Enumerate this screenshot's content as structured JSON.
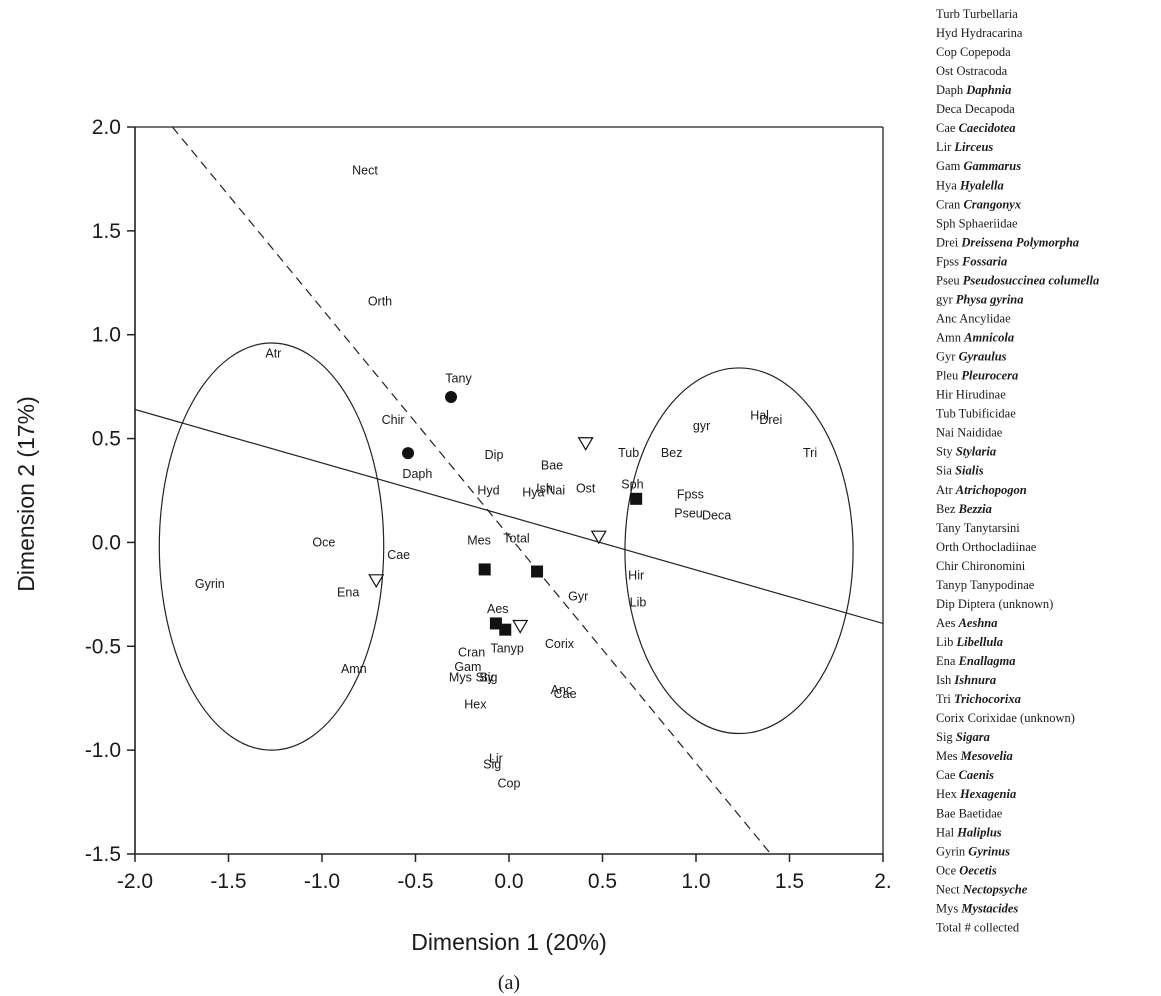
{
  "chart_data": {
    "type": "scatter",
    "caption": "(a)",
    "xlabel": "Dimension 1 (20%)",
    "ylabel": "Dimension 2 (17%)",
    "xlim": [
      -2.0,
      2.0
    ],
    "ylim": [
      -1.5,
      2.0
    ],
    "x_ticks": [
      {
        "value": -2.0,
        "label": "-2.0"
      },
      {
        "value": -1.5,
        "label": "-1.5"
      },
      {
        "value": -1.0,
        "label": "-1.0"
      },
      {
        "value": -0.5,
        "label": "-0.5"
      },
      {
        "value": 0.0,
        "label": "0.0"
      },
      {
        "value": 0.5,
        "label": "0.5"
      },
      {
        "value": 1.0,
        "label": "1.0"
      },
      {
        "value": 1.5,
        "label": "1.5"
      },
      {
        "value": 2.0,
        "label": "2."
      }
    ],
    "y_ticks": [
      {
        "value": 2.0,
        "label": "2.0"
      },
      {
        "value": 1.5,
        "label": "1.5"
      },
      {
        "value": 1.0,
        "label": "1.0"
      },
      {
        "value": 0.5,
        "label": "0.5"
      },
      {
        "value": 0.0,
        "label": "0.0"
      },
      {
        "value": -0.5,
        "label": "-0.5"
      },
      {
        "value": -1.0,
        "label": "-1.0"
      },
      {
        "value": -1.5,
        "label": "-1.5"
      }
    ],
    "grid": false,
    "species_labels": [
      {
        "text": "Nect",
        "x": -0.77,
        "y": 1.79
      },
      {
        "text": "Orth",
        "x": -0.69,
        "y": 1.16
      },
      {
        "text": "Atr",
        "x": -1.26,
        "y": 0.91
      },
      {
        "text": "Tany",
        "x": -0.27,
        "y": 0.79
      },
      {
        "text": "Chir",
        "x": -0.62,
        "y": 0.59
      },
      {
        "text": "Daph",
        "x": -0.49,
        "y": 0.33
      },
      {
        "text": "Dip",
        "x": -0.08,
        "y": 0.42
      },
      {
        "text": "Hyd",
        "x": -0.11,
        "y": 0.25
      },
      {
        "text": "Bae",
        "x": 0.23,
        "y": 0.37
      },
      {
        "text": "Ish",
        "x": 0.19,
        "y": 0.26
      },
      {
        "text": "Hya",
        "x": 0.13,
        "y": 0.24
      },
      {
        "text": "Nai",
        "x": 0.25,
        "y": 0.25
      },
      {
        "text": "Ost",
        "x": 0.41,
        "y": 0.26
      },
      {
        "text": "Tub",
        "x": 0.64,
        "y": 0.43
      },
      {
        "text": "Sph",
        "x": 0.66,
        "y": 0.28
      },
      {
        "text": "gyr",
        "x": 1.03,
        "y": 0.56
      },
      {
        "text": "Bez",
        "x": 0.87,
        "y": 0.43
      },
      {
        "text": "Hal",
        "x": 1.34,
        "y": 0.61
      },
      {
        "text": "Drei",
        "x": 1.4,
        "y": 0.59
      },
      {
        "text": "Tri",
        "x": 1.61,
        "y": 0.43
      },
      {
        "text": "Fpss",
        "x": 0.97,
        "y": 0.23
      },
      {
        "text": "Pseu",
        "x": 0.96,
        "y": 0.14
      },
      {
        "text": "Deca",
        "x": 1.11,
        "y": 0.13
      },
      {
        "text": "Oce",
        "x": -0.99,
        "y": 0.0
      },
      {
        "text": "Gyrin",
        "x": -1.6,
        "y": -0.2
      },
      {
        "text": "Ena",
        "x": -0.86,
        "y": -0.24
      },
      {
        "text": "Cae",
        "x": -0.59,
        "y": -0.06
      },
      {
        "text": "Mes",
        "x": -0.16,
        "y": 0.01
      },
      {
        "text": "Total",
        "x": 0.04,
        "y": 0.02
      },
      {
        "text": "Gyr",
        "x": 0.37,
        "y": -0.26
      },
      {
        "text": "Hir",
        "x": 0.68,
        "y": -0.16
      },
      {
        "text": "Lib",
        "x": 0.69,
        "y": -0.29
      },
      {
        "text": "Aes",
        "x": -0.06,
        "y": -0.32
      },
      {
        "text": "Tanyp",
        "x": -0.01,
        "y": -0.51
      },
      {
        "text": "Corix",
        "x": 0.27,
        "y": -0.49
      },
      {
        "text": "Cran",
        "x": -0.2,
        "y": -0.53
      },
      {
        "text": "Gam",
        "x": -0.22,
        "y": -0.6
      },
      {
        "text": "Mys",
        "x": -0.26,
        "y": -0.65
      },
      {
        "text": "Sty",
        "x": -0.13,
        "y": -0.65
      },
      {
        "text": "Sig",
        "x": -0.11,
        "y": -0.65
      },
      {
        "text": "Anc",
        "x": 0.28,
        "y": -0.71
      },
      {
        "text": "Cae",
        "x": 0.3,
        "y": -0.73
      },
      {
        "text": "Hex",
        "x": -0.18,
        "y": -0.78
      },
      {
        "text": "Amn",
        "x": -0.83,
        "y": -0.61
      },
      {
        "text": "Lir",
        "x": -0.07,
        "y": -1.04
      },
      {
        "text": "Sig",
        "x": -0.09,
        "y": -1.07
      },
      {
        "text": "Cop",
        "x": 0.0,
        "y": -1.16
      }
    ],
    "markers": {
      "circles": [
        {
          "x": -0.31,
          "y": 0.7
        },
        {
          "x": -0.54,
          "y": 0.43
        }
      ],
      "squares": [
        {
          "x": 0.68,
          "y": 0.21
        },
        {
          "x": -0.13,
          "y": -0.13
        },
        {
          "x": 0.15,
          "y": -0.14
        },
        {
          "x": -0.07,
          "y": -0.39
        },
        {
          "x": -0.02,
          "y": -0.42
        }
      ],
      "triangles": [
        {
          "x": 0.41,
          "y": 0.48
        },
        {
          "x": 0.48,
          "y": 0.03
        },
        {
          "x": -0.71,
          "y": -0.18
        },
        {
          "x": 0.06,
          "y": -0.4
        }
      ]
    },
    "lines": {
      "solid": {
        "x": [
          -2.0,
          2.0
        ],
        "y": [
          0.64,
          -0.39
        ]
      },
      "dashed": {
        "x": [
          -1.8,
          1.4
        ],
        "y": [
          2.0,
          -1.5
        ]
      }
    },
    "ellipses": [
      {
        "cx": -1.27,
        "cy": -0.02,
        "rx": 0.6,
        "ry": 0.98
      },
      {
        "cx": 1.23,
        "cy": -0.04,
        "rx": 0.61,
        "ry": 0.88
      }
    ]
  },
  "legend": [
    {
      "abbr": "Turb",
      "name": "Turbellaria",
      "italic": false
    },
    {
      "abbr": "Hyd",
      "name": "Hydracarina",
      "italic": false
    },
    {
      "abbr": "Cop",
      "name": "Copepoda",
      "italic": false
    },
    {
      "abbr": "Ost",
      "name": "Ostracoda",
      "italic": false
    },
    {
      "abbr": "Daph",
      "name": "Daphnia",
      "italic": true
    },
    {
      "abbr": "Deca",
      "name": "Decapoda",
      "italic": false
    },
    {
      "abbr": "Cae",
      "name": "Caecidotea",
      "italic": true
    },
    {
      "abbr": "Lir",
      "name": "Lirceus",
      "italic": true
    },
    {
      "abbr": "Gam",
      "name": "Gammarus",
      "italic": true
    },
    {
      "abbr": "Hya",
      "name": "Hyalella",
      "italic": true
    },
    {
      "abbr": "Cran",
      "name": "Crangonyx",
      "italic": true
    },
    {
      "abbr": "Sph",
      "name": "Sphaeriidae",
      "italic": false
    },
    {
      "abbr": "Drei",
      "name": "Dreissena Polymorpha",
      "italic": true
    },
    {
      "abbr": "Fpss",
      "name": "Fossaria",
      "italic": true
    },
    {
      "abbr": "Pseu",
      "name": "Pseudosuccinea columella",
      "italic": true
    },
    {
      "abbr": "gyr",
      "name": "Physa gyrina",
      "italic": true
    },
    {
      "abbr": "Anc",
      "name": "Ancylidae",
      "italic": false
    },
    {
      "abbr": "Amn",
      "name": "Amnicola",
      "italic": true
    },
    {
      "abbr": "Gyr",
      "name": "Gyraulus",
      "italic": true
    },
    {
      "abbr": "Pleu",
      "name": "Pleurocera",
      "italic": true
    },
    {
      "abbr": "Hir",
      "name": "Hirudinae",
      "italic": false
    },
    {
      "abbr": "Tub",
      "name": "Tubificidae",
      "italic": false
    },
    {
      "abbr": "Nai",
      "name": "Naididae",
      "italic": false
    },
    {
      "abbr": "Sty",
      "name": "Stylaria",
      "italic": true
    },
    {
      "abbr": "Sia",
      "name": "Sialis",
      "italic": true
    },
    {
      "abbr": "Atr",
      "name": "Atrichopogon",
      "italic": true
    },
    {
      "abbr": "Bez",
      "name": "Bezzia",
      "italic": true
    },
    {
      "abbr": "Tany",
      "name": "Tanytarsini",
      "italic": false
    },
    {
      "abbr": "Orth",
      "name": "Orthocladiinae",
      "italic": false
    },
    {
      "abbr": "Chir",
      "name": "Chironomini",
      "italic": false
    },
    {
      "abbr": "Tanyp",
      "name": "Tanypodinae",
      "italic": false
    },
    {
      "abbr": "Dip",
      "name": "Diptera (unknown)",
      "italic": false
    },
    {
      "abbr": "Aes",
      "name": "Aeshna",
      "italic": true
    },
    {
      "abbr": "Lib",
      "name": "Libellula",
      "italic": true
    },
    {
      "abbr": "Ena",
      "name": "Enallagma",
      "italic": true
    },
    {
      "abbr": "Ish",
      "name": "Ishnura",
      "italic": true
    },
    {
      "abbr": "Tri",
      "name": "Trichocorixa",
      "italic": true
    },
    {
      "abbr": "Corix",
      "name": "Corixidae (unknown)",
      "italic": false
    },
    {
      "abbr": "Sig",
      "name": "Sigara",
      "italic": true
    },
    {
      "abbr": "Mes",
      "name": "Mesovelia",
      "italic": true
    },
    {
      "abbr": "Cae",
      "name": "Caenis",
      "italic": true
    },
    {
      "abbr": "Hex",
      "name": "Hexagenia",
      "italic": true
    },
    {
      "abbr": "Bae",
      "name": "Baetidae",
      "italic": false
    },
    {
      "abbr": "Hal",
      "name": "Haliplus",
      "italic": true
    },
    {
      "abbr": "Gyrin",
      "name": "Gyrinus",
      "italic": true
    },
    {
      "abbr": "Oce",
      "name": "Oecetis",
      "italic": true
    },
    {
      "abbr": "Nect",
      "name": "Nectopsyche",
      "italic": true
    },
    {
      "abbr": "Mys",
      "name": "Mystacides",
      "italic": true
    },
    {
      "abbr": "Total",
      "name": "# collected",
      "italic": false
    }
  ]
}
